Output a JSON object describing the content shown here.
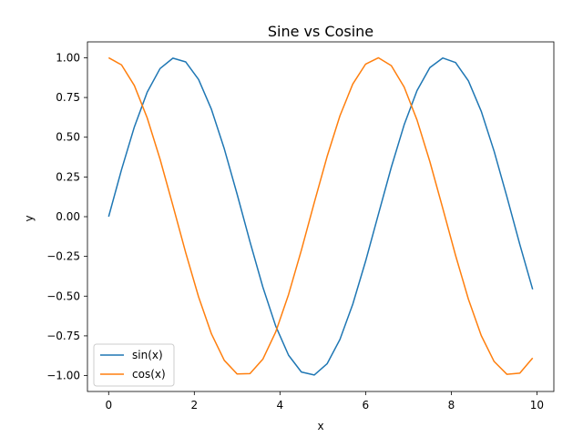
{
  "chart_data": {
    "type": "line",
    "title": "Sine vs Cosine",
    "xlabel": "x",
    "ylabel": "y",
    "xlim": [
      -0.495,
      10.395
    ],
    "ylim": [
      -1.1,
      1.1
    ],
    "grid": false,
    "legend_position": "lower-left",
    "x_ticks": [
      0,
      2,
      4,
      6,
      8,
      10
    ],
    "x_tick_labels": [
      "0",
      "2",
      "4",
      "6",
      "8",
      "10"
    ],
    "y_ticks": [
      1.0,
      0.75,
      0.5,
      0.25,
      0.0,
      -0.25,
      -0.5,
      -0.75,
      -1.0
    ],
    "y_tick_labels": [
      "1.00",
      "0.75",
      "0.50",
      "0.25",
      "0.00",
      "−0.25",
      "−0.50",
      "−0.75",
      "−1.00"
    ],
    "x": [
      0.0,
      0.3,
      0.6,
      0.9,
      1.2,
      1.5,
      1.8,
      2.1,
      2.4,
      2.7,
      3.0,
      3.3,
      3.6,
      3.9,
      4.2,
      4.5,
      4.8,
      5.1,
      5.4,
      5.7,
      6.0,
      6.3,
      6.6,
      6.9,
      7.2,
      7.5,
      7.8,
      8.1,
      8.4,
      8.7,
      9.0,
      9.3,
      9.6,
      9.9
    ],
    "series": [
      {
        "name": "sin(x)",
        "color": "#1f77b4",
        "values": [
          0.0,
          0.2955,
          0.5646,
          0.7833,
          0.932,
          0.9975,
          0.9738,
          0.8632,
          0.6755,
          0.4274,
          0.1411,
          -0.1577,
          -0.4425,
          -0.6878,
          -0.8716,
          -0.9775,
          -0.9962,
          -0.9258,
          -0.7728,
          -0.5507,
          -0.2794,
          0.0168,
          0.3115,
          0.5784,
          0.7937,
          0.938,
          0.9985,
          0.9699,
          0.8546,
          0.663,
          0.4121,
          0.1245,
          -0.1743,
          -0.4575
        ]
      },
      {
        "name": "cos(x)",
        "color": "#ff7f0e",
        "values": [
          1.0,
          0.9553,
          0.8253,
          0.6216,
          0.3624,
          0.0707,
          -0.2272,
          -0.5048,
          -0.7374,
          -0.9041,
          -0.99,
          -0.9875,
          -0.8968,
          -0.7259,
          -0.4903,
          -0.2108,
          0.0875,
          0.378,
          0.6347,
          0.8347,
          0.9602,
          0.9999,
          0.9502,
          0.8157,
          0.6084,
          0.3466,
          0.054,
          -0.2435,
          -0.5192,
          -0.7484,
          -0.9111,
          -0.9922,
          -0.9847,
          -0.8892
        ]
      }
    ]
  }
}
